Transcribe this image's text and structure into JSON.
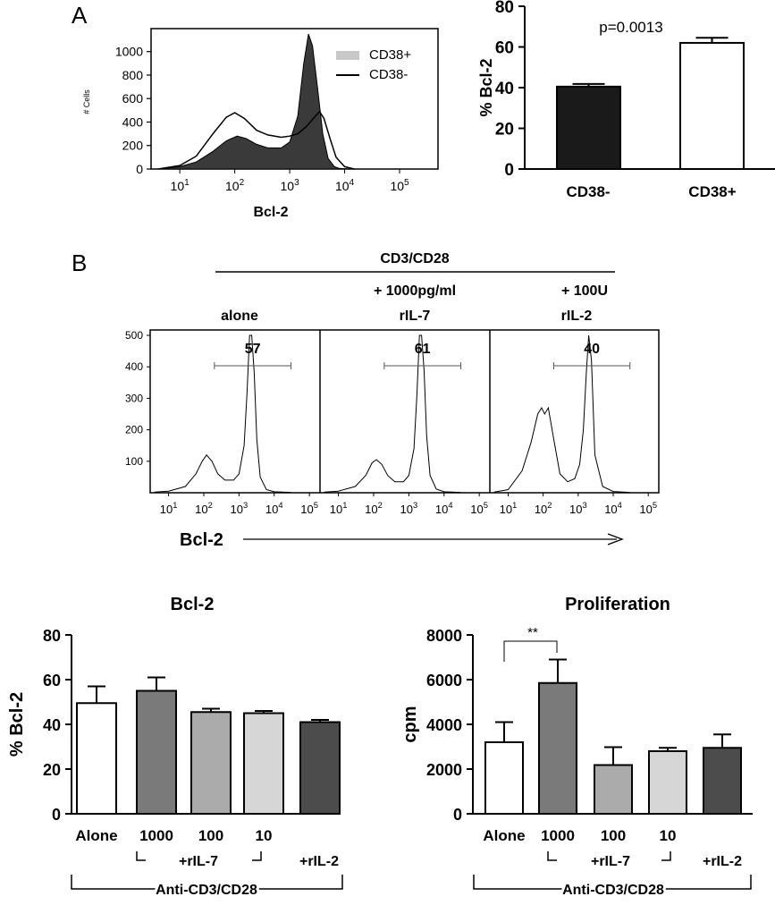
{
  "panel_a": {
    "letter": "A",
    "histogram": {
      "legend": [
        "CD38+",
        "CD38-"
      ],
      "y_ticks": [
        "0",
        "200",
        "400",
        "600",
        "800",
        "1000"
      ],
      "y_label": "# Cells",
      "x_ticks": [
        {
          "base": "10",
          "exp": "1"
        },
        {
          "base": "10",
          "exp": "2"
        },
        {
          "base": "10",
          "exp": "3"
        },
        {
          "base": "10",
          "exp": "4"
        },
        {
          "base": "10",
          "exp": "5"
        }
      ],
      "x_label": "Bcl-2",
      "colors": {
        "cd38_plus": "#3a3a3a",
        "legend_swatch": "#c8c8c8"
      }
    },
    "bar": {
      "y_label": "% Bcl-2",
      "y_ticks": [
        "0",
        "20",
        "40",
        "60",
        "80"
      ],
      "categories": [
        "CD38-",
        "CD38+"
      ],
      "p_value": "p=0.0013"
    }
  },
  "panel_b": {
    "letter": "B",
    "header": "CD3/CD28",
    "conditions": [
      {
        "line1": "",
        "line2": "alone",
        "value": "57"
      },
      {
        "line1": "+ 1000pg/ml",
        "line2": "rIL-7",
        "value": "61"
      },
      {
        "line1": "+ 100U",
        "line2": "rIL-2",
        "value": "40"
      }
    ],
    "y_ticks": [
      "100",
      "200",
      "300",
      "400",
      "500"
    ],
    "x_ticks": [
      {
        "base": "10",
        "exp": "1"
      },
      {
        "base": "10",
        "exp": "2"
      },
      {
        "base": "10",
        "exp": "3"
      },
      {
        "base": "10",
        "exp": "4"
      },
      {
        "base": "10",
        "exp": "5"
      }
    ],
    "x_label": "Bcl-2"
  },
  "bcl2_chart": {
    "title": "Bcl-2",
    "y_label": "% Bcl-2",
    "y_ticks": [
      "0",
      "20",
      "40",
      "60",
      "80"
    ],
    "categories": [
      "Alone",
      "1000",
      "100",
      "10",
      ""
    ],
    "group_label_il7": "+rIL-7",
    "group_label_il2": "+rIL-2",
    "bottom_label": "Anti-CD3/CD28"
  },
  "prolif_chart": {
    "title": "Proliferation",
    "y_label": "cpm",
    "y_ticks": [
      "0",
      "2000",
      "4000",
      "6000",
      "8000"
    ],
    "categories": [
      "Alone",
      "1000",
      "100",
      "10",
      ""
    ],
    "group_label_il7": "+rIL-7",
    "group_label_il2": "+rIL-2",
    "bottom_label": "Anti-CD3/CD28",
    "significance": "**"
  },
  "chart_data": [
    {
      "type": "line",
      "xlabel": "Bcl-2",
      "ylabel": "",
      "x_scale": "log",
      "xlim": [
        3,
        500000
      ],
      "ylim": [
        0,
        1150
      ],
      "series": [
        {
          "name": "CD38+",
          "x": [
            4,
            10,
            20,
            40,
            70,
            110,
            160,
            250,
            400,
            700,
            1000,
            1400,
            1800,
            2200,
            2600,
            3200,
            4000,
            5000,
            6500,
            8000,
            12000
          ],
          "y": [
            0,
            20,
            60,
            150,
            240,
            280,
            260,
            210,
            180,
            180,
            230,
            450,
            900,
            1150,
            1050,
            700,
            300,
            90,
            20,
            5,
            0
          ]
        },
        {
          "name": "CD38-",
          "x": [
            4,
            10,
            20,
            40,
            70,
            100,
            150,
            250,
            400,
            700,
            1000,
            1400,
            2000,
            2800,
            3500,
            4200,
            5500,
            7000,
            10000,
            15000
          ],
          "y": [
            0,
            30,
            110,
            300,
            440,
            480,
            430,
            330,
            290,
            270,
            280,
            300,
            360,
            440,
            490,
            430,
            250,
            100,
            20,
            0
          ]
        }
      ]
    },
    {
      "type": "bar",
      "categories": [
        "CD38-",
        "CD38+"
      ],
      "values": [
        40.5,
        62
      ],
      "errors": [
        1.3,
        2.5
      ],
      "ylabel": "% Bcl-2",
      "ylim": [
        0,
        80
      ],
      "colors": [
        "#1a1a1a",
        "#ffffff"
      ]
    },
    {
      "type": "line",
      "xlabel": "Bcl-2",
      "x_scale": "log",
      "xlim": [
        3,
        200000
      ],
      "ylim": [
        0,
        500
      ],
      "series": [
        {
          "name": "",
          "marker_value": 57,
          "x": [
            4,
            10,
            30,
            60,
            90,
            120,
            170,
            250,
            400,
            700,
            1000,
            1400,
            1700,
            2000,
            2300,
            2700,
            3200,
            4000,
            6000,
            10000,
            30000
          ],
          "y": [
            2,
            5,
            20,
            60,
            100,
            120,
            100,
            60,
            40,
            40,
            60,
            150,
            320,
            500,
            500,
            380,
            170,
            50,
            10,
            3,
            1
          ]
        },
        {
          "name": "",
          "marker_value": 61,
          "x": [
            4,
            10,
            30,
            60,
            90,
            120,
            170,
            250,
            400,
            700,
            1000,
            1400,
            1700,
            2000,
            2300,
            2700,
            3200,
            4000,
            6000,
            10000,
            30000
          ],
          "y": [
            2,
            5,
            20,
            55,
            95,
            105,
            90,
            55,
            35,
            35,
            55,
            140,
            310,
            500,
            500,
            390,
            180,
            55,
            12,
            3,
            1
          ]
        },
        {
          "name": "",
          "marker_value": 40,
          "x": [
            4,
            10,
            25,
            45,
            70,
            90,
            110,
            140,
            200,
            300,
            500,
            800,
            1100,
            1400,
            1700,
            2000,
            2400,
            3000,
            5000,
            10000,
            30000
          ],
          "y": [
            2,
            10,
            70,
            160,
            250,
            270,
            250,
            270,
            170,
            60,
            35,
            45,
            90,
            200,
            380,
            500,
            420,
            120,
            20,
            4,
            1
          ]
        }
      ]
    },
    {
      "type": "bar",
      "title": "Bcl-2",
      "categories": [
        "Alone",
        "1000",
        "100",
        "10",
        "+rIL-2"
      ],
      "values": [
        49.5,
        55,
        45.5,
        45,
        41
      ],
      "errors": [
        7.5,
        6,
        1.5,
        1,
        1
      ],
      "ylabel": "% Bcl-2",
      "ylim": [
        0,
        80
      ],
      "colors": [
        "#ffffff",
        "#7a7a7a",
        "#ababab",
        "#d6d6d6",
        "#4c4c4c"
      ]
    },
    {
      "type": "bar",
      "title": "Proliferation",
      "categories": [
        "Alone",
        "1000",
        "100",
        "10",
        "+rIL-2"
      ],
      "values": [
        3200,
        5850,
        2180,
        2800,
        2950
      ],
      "errors": [
        900,
        1050,
        800,
        150,
        600
      ],
      "ylabel": "cpm",
      "ylim": [
        0,
        8000
      ],
      "colors": [
        "#ffffff",
        "#7a7a7a",
        "#ababab",
        "#d6d6d6",
        "#4c4c4c"
      ]
    }
  ]
}
